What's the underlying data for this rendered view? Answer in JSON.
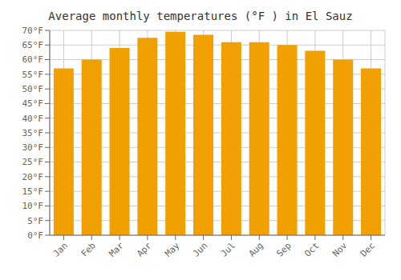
{
  "chart_data": {
    "type": "bar",
    "title": "Average monthly temperatures (°F ) in El Sauz",
    "categories": [
      "Jan",
      "Feb",
      "Mar",
      "Apr",
      "May",
      "Jun",
      "Jul",
      "Aug",
      "Sep",
      "Oct",
      "Nov",
      "Dec"
    ],
    "values": [
      57,
      60,
      64,
      67.5,
      69.5,
      68.5,
      66,
      66,
      65,
      63,
      60,
      57
    ],
    "color": "#F0A000",
    "ylim": [
      0,
      70
    ],
    "yticks": [
      {
        "value": 0,
        "label": "0°F"
      },
      {
        "value": 5,
        "label": "5°F"
      },
      {
        "value": 10,
        "label": "10°F"
      },
      {
        "value": 15,
        "label": "15°F"
      },
      {
        "value": 20,
        "label": "20°F"
      },
      {
        "value": 25,
        "label": "25°F"
      },
      {
        "value": 30,
        "label": "30°F"
      },
      {
        "value": 35,
        "label": "35°F"
      },
      {
        "value": 40,
        "label": "40°F"
      },
      {
        "value": 45,
        "label": "45°F"
      },
      {
        "value": 50,
        "label": "50°F"
      },
      {
        "value": 55,
        "label": "55°F"
      },
      {
        "value": 60,
        "label": "60°F"
      },
      {
        "value": 65,
        "label": "65°F"
      },
      {
        "value": 70,
        "label": "70°F"
      }
    ],
    "grid": true
  }
}
